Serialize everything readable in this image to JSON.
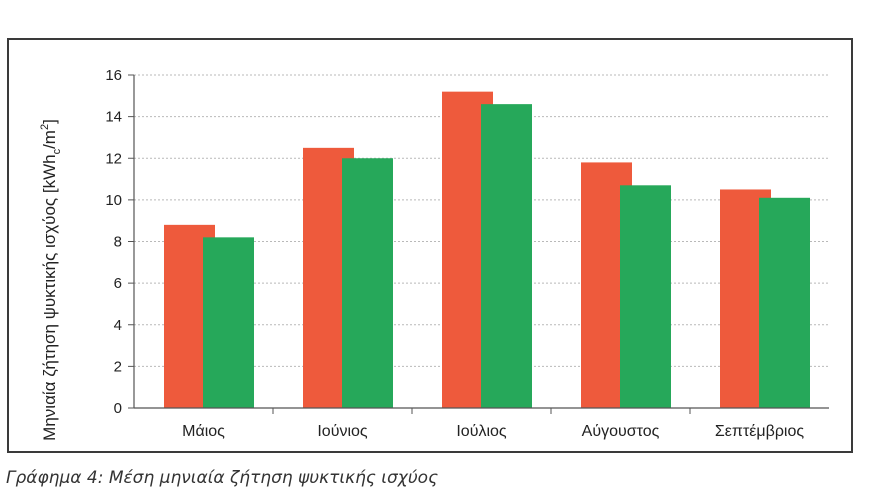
{
  "caption": "Γράφημα 4: Μέση μηνιαία ζήτηση ψυκτικής ισχύος",
  "chart_data": {
    "type": "bar",
    "title": "",
    "xlabel": "",
    "ylabel": "Μηνιαία ζήτηση ψυκτικής ισχύος [kWh",
    "ylabel_sub": "c",
    "ylabel_after_sub": "/m",
    "ylabel_sup": "2",
    "ylabel_end": "]",
    "categories": [
      "Μάιος",
      "Ιούνιος",
      "Ιούλιος",
      "Αύγουστος",
      "Σεπτέμβριος"
    ],
    "series": [
      {
        "values": [
          8.8,
          12.5,
          15.2,
          11.8,
          10.5
        ],
        "color": "#ee5a3c"
      },
      {
        "values": [
          8.2,
          12.0,
          14.6,
          10.7,
          10.1
        ],
        "color": "#26a85a"
      }
    ],
    "ylim": [
      0,
      16
    ],
    "yticks": [
      0,
      2,
      4,
      6,
      8,
      10,
      12,
      14,
      16
    ],
    "grid": true,
    "legend": "none"
  }
}
